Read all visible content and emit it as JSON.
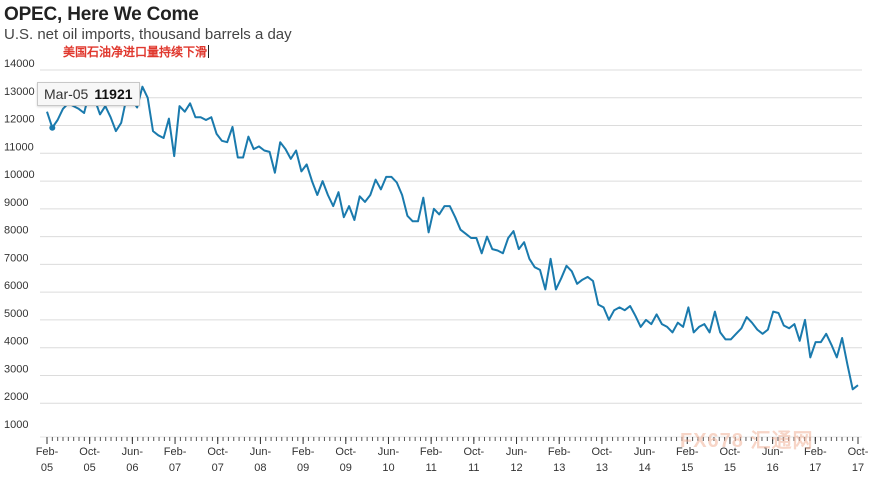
{
  "chart_data": {
    "type": "line",
    "title": "OPEC, Here We Come",
    "subtitle": "U.S. net oil imports, thousand barrels a day",
    "annotation": "美国石油净进口量持续下滑",
    "ylim": [
      1000,
      14000
    ],
    "y_ticks": [
      1000,
      2000,
      3000,
      4000,
      5000,
      6000,
      7000,
      8000,
      9000,
      10000,
      11000,
      12000,
      13000,
      14000
    ],
    "x_ticks": [
      {
        "label": [
          "Feb-",
          "05"
        ],
        "t": "2005-02"
      },
      {
        "label": [
          "Oct-",
          "05"
        ],
        "t": "2005-10"
      },
      {
        "label": [
          "Jun-",
          "06"
        ],
        "t": "2006-06"
      },
      {
        "label": [
          "Feb-",
          "07"
        ],
        "t": "2007-02"
      },
      {
        "label": [
          "Oct-",
          "07"
        ],
        "t": "2007-10"
      },
      {
        "label": [
          "Jun-",
          "08"
        ],
        "t": "2008-06"
      },
      {
        "label": [
          "Feb-",
          "09"
        ],
        "t": "2009-02"
      },
      {
        "label": [
          "Oct-",
          "09"
        ],
        "t": "2009-10"
      },
      {
        "label": [
          "Jun-",
          "10"
        ],
        "t": "2010-06"
      },
      {
        "label": [
          "Feb-",
          "11"
        ],
        "t": "2011-02"
      },
      {
        "label": [
          "Oct-",
          "11"
        ],
        "t": "2011-10"
      },
      {
        "label": [
          "Jun-",
          "12"
        ],
        "t": "2012-06"
      },
      {
        "label": [
          "Feb-",
          "13"
        ],
        "t": "2013-02"
      },
      {
        "label": [
          "Oct-",
          "13"
        ],
        "t": "2013-10"
      },
      {
        "label": [
          "Jun-",
          "14"
        ],
        "t": "2014-06"
      },
      {
        "label": [
          "Feb-",
          "15"
        ],
        "t": "2015-02"
      },
      {
        "label": [
          "Oct-",
          "15"
        ],
        "t": "2015-10"
      },
      {
        "label": [
          "Jun-",
          "16"
        ],
        "t": "2016-06"
      },
      {
        "label": [
          "Feb-",
          "17"
        ],
        "t": "2017-02"
      },
      {
        "label": [
          "Oct-",
          "17"
        ],
        "t": "2017-10"
      }
    ],
    "start": "2005-02",
    "end": "2017-10",
    "series": [
      {
        "color": "#1a7aad",
        "values": [
          12500,
          11921,
          12200,
          12600,
          12800,
          12700,
          12600,
          12450,
          13200,
          12950,
          12400,
          12700,
          12300,
          11800,
          12100,
          13000,
          12950,
          12650,
          13400,
          13000,
          11800,
          11650,
          11550,
          12250,
          10900,
          12700,
          12500,
          12800,
          12300,
          12300,
          12200,
          12300,
          11700,
          11450,
          11400,
          11950,
          10850,
          10850,
          11600,
          11150,
          11250,
          11100,
          11050,
          10300,
          11400,
          11150,
          10800,
          11100,
          10350,
          10600,
          10000,
          9500,
          10000,
          9500,
          9100,
          9600,
          8700,
          9100,
          8600,
          9450,
          9250,
          9500,
          10050,
          9700,
          10150,
          10150,
          9950,
          9500,
          8750,
          8550,
          8550,
          9400,
          8150,
          9000,
          8800,
          9100,
          9100,
          8700,
          8250,
          8100,
          7950,
          7950,
          7400,
          8000,
          7550,
          7500,
          7400,
          7950,
          8200,
          7550,
          7800,
          7200,
          6900,
          6800,
          6100,
          7200,
          6100,
          6500,
          6950,
          6750,
          6300,
          6450,
          6550,
          6400,
          5550,
          5450,
          5000,
          5350,
          5450,
          5350,
          5500,
          5150,
          4750,
          5000,
          4850,
          5200,
          4850,
          4750,
          4550,
          4900,
          4750,
          5450,
          4550,
          4750,
          4850,
          4550,
          5300,
          4550,
          4300,
          4300,
          4500,
          4700,
          5100,
          4900,
          4650,
          4500,
          4650,
          5300,
          5250,
          4800,
          4700,
          4850,
          4250,
          5000,
          3650,
          4200,
          4200,
          4500,
          4100,
          3650,
          4350,
          3400,
          2500,
          2650
        ]
      }
    ],
    "tooltip": {
      "label": "Mar-05",
      "value": "11921"
    },
    "grid": true,
    "legend": "none"
  },
  "watermark": "FX678 汇通网"
}
